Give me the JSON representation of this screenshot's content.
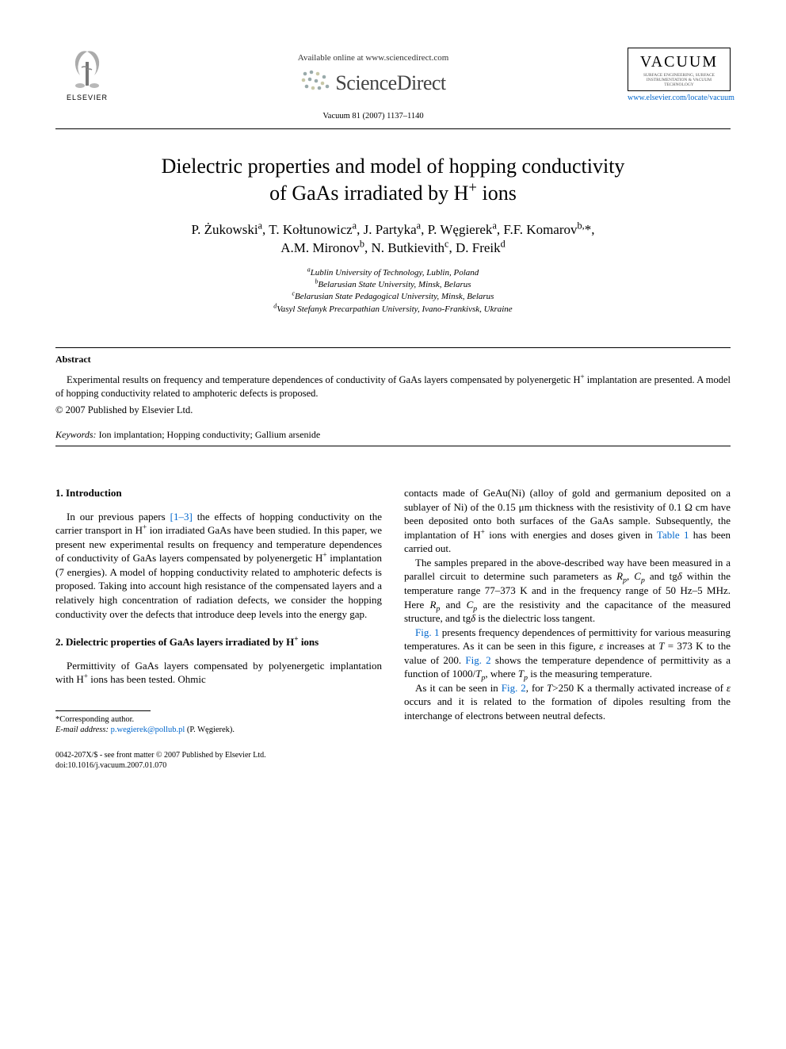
{
  "header": {
    "elsevier_label": "ELSEVIER",
    "available_online": "Available online at www.sciencedirect.com",
    "sciencedirect": "ScienceDirect",
    "journal_ref": "Vacuum 81 (2007) 1137–1140",
    "vacuum_title": "VACUUM",
    "vacuum_sub": "SURFACE ENGINEERING, SURFACE INSTRUMENTATION & VACUUM TECHNOLOGY",
    "journal_url": "www.elsevier.com/locate/vacuum"
  },
  "title_line1": "Dielectric properties and model of hopping conductivity",
  "title_line2": "of GaAs irradiated by H",
  "title_line2_sup": "+",
  "title_line2_end": " ions",
  "authors_html": "P. Żukowski<sup>a</sup>, T. Kołtunowicz<sup>a</sup>, J. Partyka<sup>a</sup>, P. Węgierek<sup>a</sup>, F.F. Komarov<sup>b,</sup>*,<br>A.M. Mironov<sup>b</sup>, N. Butkievith<sup>c</sup>, D. Freik<sup>d</sup>",
  "affiliations": [
    "<sup>a</sup>Lublin University of Technology, Lublin, Poland",
    "<sup>b</sup>Belarusian State University, Minsk, Belarus",
    "<sup>c</sup>Belarusian State Pedagogical University, Minsk, Belarus",
    "<sup>d</sup>Vasyl Stefanyk Precarpathian University, Ivano-Frankivsk, Ukraine"
  ],
  "abstract_heading": "Abstract",
  "abstract_text": "Experimental results on frequency and temperature dependences of conductivity of GaAs layers compensated by polyenergetic H<sup>+</sup> implantation are presented. A model of hopping conductivity related to amphoteric defects is proposed.",
  "copyright": "© 2007 Published by Elsevier Ltd.",
  "keywords_label": "Keywords:",
  "keywords_text": " Ion implantation; Hopping conductivity; Gallium arsenide",
  "sections": {
    "intro_heading": "1. Introduction",
    "intro_para": "In our previous papers <span class=\"ref-link\">[1–3]</span> the effects of hopping conductivity on the carrier transport in H<sup>+</sup> ion irradiated GaAs have been studied. In this paper, we present new experimental results on frequency and temperature dependences of conductivity of GaAs layers compensated by polyenergetic H<sup>+</sup> implantation (7 energies). A model of hopping conductivity related to amphoteric defects is proposed. Taking into account high resistance of the compensated layers and a relatively high concentration of radiation defects, we consider the hopping conductivity over the defects that introduce deep levels into the energy gap.",
    "sec2_heading": "2. Dielectric properties of GaAs layers irradiated by H<sup>+</sup> ions",
    "sec2_para1": "Permittivity of GaAs layers compensated by polyenergetic implantation with H<sup>+</sup> ions has been tested. Ohmic",
    "col2_para1": "contacts made of GeAu(Ni) (alloy of gold and germanium deposited on a sublayer of Ni) of the 0.15 μm thickness with the resistivity of 0.1 Ω cm have been deposited onto both surfaces of the GaAs sample. Subsequently, the implantation of H<sup>+</sup> ions with energies and doses given in <span class=\"ref-link\">Table 1</span> has been carried out.",
    "col2_para2": "The samples prepared in the above-described way have been measured in a parallel circuit to determine such parameters as <i>R<sub>p</sub></i>, <i>C<sub>p</sub></i> and tg<i>δ</i> within the temperature range 77–373 K and in the frequency range of 50 Hz–5 MHz. Here <i>R<sub>p</sub></i> and <i>C<sub>p</sub></i> are the resistivity and the capacitance of the measured structure, and tg<i>δ</i> is the dielectric loss tangent.",
    "col2_para3": "<span class=\"ref-link\">Fig. 1</span> presents frequency dependences of permittivity for various measuring temperatures. As it can be seen in this figure, <i>ε</i> increases at <i>T</i> = 373 K to the value of 200. <span class=\"ref-link\">Fig. 2</span> shows the temperature dependence of permittivity as a function of 1000/<i>T<sub>p</sub></i>, where <i>T<sub>p</sub></i> is the measuring temperature.",
    "col2_para4": "As it can be seen in <span class=\"ref-link\">Fig. 2</span>, for <i>T</i>&gt;250 K a thermally activated increase of <i>ε</i> occurs and it is related to the formation of dipoles resulting from the interchange of electrons between neutral defects."
  },
  "footnote": {
    "corresponding": "*Corresponding author.",
    "email_label": "E-mail address:",
    "email": "p.wegierek@pollub.pl",
    "email_author": " (P. Węgierek)."
  },
  "footer": {
    "issn": "0042-207X/$ - see front matter © 2007 Published by Elsevier Ltd.",
    "doi": "doi:10.1016/j.vacuum.2007.01.070"
  },
  "colors": {
    "link": "#0066cc",
    "text": "#000000",
    "bg": "#ffffff"
  }
}
